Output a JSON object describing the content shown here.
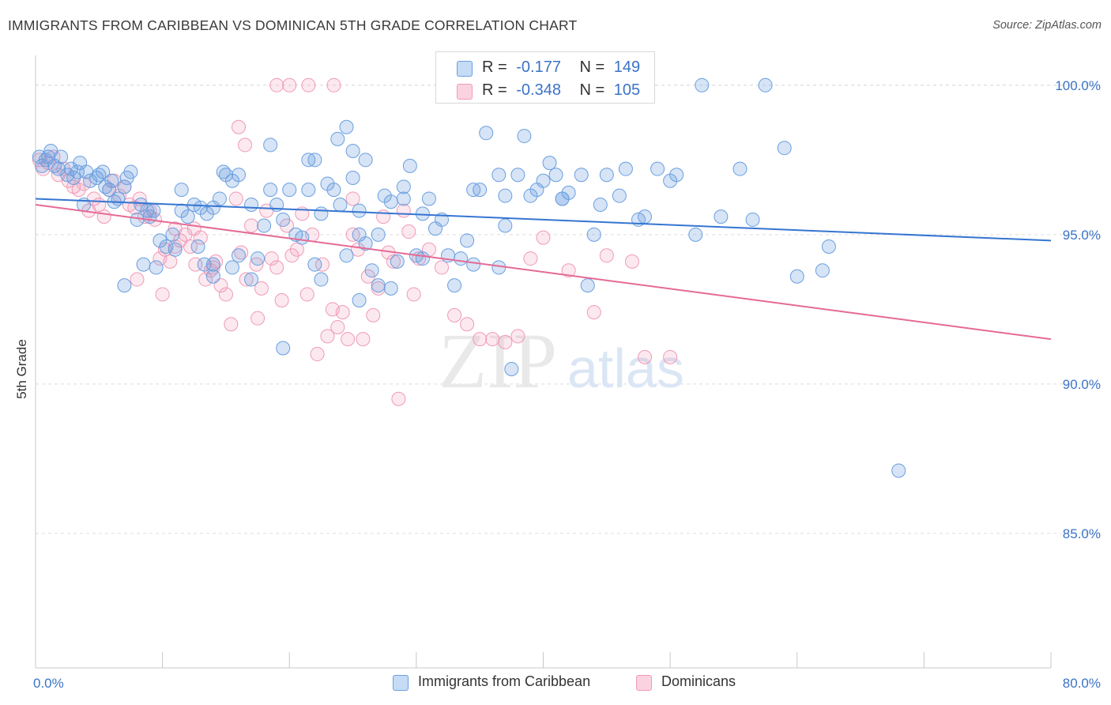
{
  "header": {
    "title": "IMMIGRANTS FROM CARIBBEAN VS DOMINICAN 5TH GRADE CORRELATION CHART",
    "source": "Source: ZipAtlas.com"
  },
  "watermark": {
    "zip": "ZIP",
    "atlas": "atlas"
  },
  "legend_top": {
    "rows": [
      {
        "r_label": "R =",
        "r_value": "-0.177",
        "n_label": "N =",
        "n_value": "149",
        "color": "#a9c8f0"
      },
      {
        "r_label": "R =",
        "r_value": "-0.348",
        "n_label": "N =",
        "n_value": "105",
        "color": "#f7b6ca"
      }
    ]
  },
  "legend_bottom": {
    "items": [
      {
        "label": "Immigrants from Caribbean",
        "color": "#a9c8f0"
      },
      {
        "label": "Dominicans",
        "color": "#f7b6ca"
      }
    ]
  },
  "chart_data": {
    "type": "scatter",
    "title": "IMMIGRANTS FROM CARIBBEAN VS DOMINICAN 5TH GRADE CORRELATION CHART",
    "xlabel": "",
    "ylabel": "5th Grade",
    "xlim": [
      0,
      80
    ],
    "ylim": [
      80.5,
      101
    ],
    "x_tick_labels": [
      "0.0%",
      "80.0%"
    ],
    "y_ticks": [
      85,
      90,
      95,
      100
    ],
    "y_tick_labels": [
      "85.0%",
      "90.0%",
      "95.0%",
      "100.0%"
    ],
    "grid": "horizontal dashed",
    "legend_placement": "top-center and bottom",
    "colors": {
      "blue": "#6a9fe0",
      "blue_line": "#3575d1",
      "pink": "#f09ab6",
      "pink_line": "#e56a95",
      "tick_text": "#3b73c6"
    },
    "series": [
      {
        "name": "Immigrants from Caribbean",
        "color": "#6a9fe0",
        "trend": {
          "x": [
            0,
            80
          ],
          "y": [
            96.2,
            94.8
          ]
        },
        "points": [
          [
            0.3,
            97.6
          ],
          [
            0.5,
            97.3
          ],
          [
            0.8,
            97.5
          ],
          [
            1.0,
            97.6
          ],
          [
            1.2,
            97.8
          ],
          [
            1.5,
            97.3
          ],
          [
            1.8,
            97.2
          ],
          [
            2.0,
            97.6
          ],
          [
            2.5,
            97.0
          ],
          [
            2.8,
            97.2
          ],
          [
            3.0,
            96.9
          ],
          [
            3.3,
            97.1
          ],
          [
            3.5,
            97.4
          ],
          [
            4.0,
            97.1
          ],
          [
            4.3,
            96.8
          ],
          [
            4.8,
            96.9
          ],
          [
            5.0,
            97.0
          ],
          [
            5.3,
            97.1
          ],
          [
            5.5,
            96.6
          ],
          [
            6.0,
            96.8
          ],
          [
            6.2,
            96.1
          ],
          [
            6.5,
            96.2
          ],
          [
            7.0,
            96.6
          ],
          [
            7.2,
            96.9
          ],
          [
            7.5,
            97.1
          ],
          [
            3.8,
            96.0
          ],
          [
            5.8,
            96.5
          ],
          [
            8.0,
            95.5
          ],
          [
            8.3,
            96.0
          ],
          [
            8.8,
            95.8
          ],
          [
            9.0,
            95.6
          ],
          [
            9.3,
            95.8
          ],
          [
            9.8,
            94.8
          ],
          [
            10.3,
            94.6
          ],
          [
            10.8,
            95.0
          ],
          [
            11.0,
            94.5
          ],
          [
            11.5,
            95.8
          ],
          [
            12.0,
            95.6
          ],
          [
            12.5,
            96.0
          ],
          [
            13.0,
            95.9
          ],
          [
            13.5,
            95.7
          ],
          [
            14.0,
            95.9
          ],
          [
            14.5,
            96.2
          ],
          [
            7.0,
            93.3
          ],
          [
            8.5,
            94.0
          ],
          [
            9.5,
            93.9
          ],
          [
            11.5,
            96.5
          ],
          [
            12.8,
            94.6
          ],
          [
            13.3,
            94.0
          ],
          [
            14.0,
            94.0
          ],
          [
            15.0,
            97.0
          ],
          [
            15.5,
            96.8
          ],
          [
            16.0,
            97.0
          ],
          [
            17.0,
            96.0
          ],
          [
            17.5,
            94.2
          ],
          [
            18.0,
            95.3
          ],
          [
            18.5,
            96.5
          ],
          [
            19.0,
            96.0
          ],
          [
            19.5,
            95.5
          ],
          [
            20.0,
            96.5
          ],
          [
            20.5,
            95.0
          ],
          [
            21.0,
            94.9
          ],
          [
            21.5,
            96.5
          ],
          [
            22.0,
            94.0
          ],
          [
            22.5,
            95.7
          ],
          [
            23.0,
            96.7
          ],
          [
            23.5,
            96.5
          ],
          [
            24.0,
            96.0
          ],
          [
            24.5,
            94.3
          ],
          [
            25.0,
            96.9
          ],
          [
            25.5,
            95.0
          ],
          [
            26.0,
            94.7
          ],
          [
            26.5,
            93.8
          ],
          [
            27.0,
            95.0
          ],
          [
            27.5,
            96.3
          ],
          [
            28.0,
            96.1
          ],
          [
            28.5,
            94.1
          ],
          [
            29.0,
            96.2
          ],
          [
            29.5,
            97.3
          ],
          [
            30.0,
            94.3
          ],
          [
            14.8,
            97.1
          ],
          [
            18.5,
            98.0
          ],
          [
            23.8,
            98.2
          ],
          [
            24.5,
            98.6
          ],
          [
            21.5,
            97.5
          ],
          [
            25.0,
            97.8
          ],
          [
            26.0,
            97.5
          ],
          [
            15.5,
            93.9
          ],
          [
            16.0,
            94.3
          ],
          [
            17.0,
            93.5
          ],
          [
            14.0,
            93.6
          ],
          [
            19.5,
            91.2
          ],
          [
            22.5,
            93.5
          ],
          [
            25.5,
            92.8
          ],
          [
            28.0,
            93.2
          ],
          [
            29.0,
            96.6
          ],
          [
            30.5,
            94.2
          ],
          [
            31.0,
            96.2
          ],
          [
            31.5,
            95.2
          ],
          [
            32.0,
            95.5
          ],
          [
            33.0,
            93.3
          ],
          [
            33.5,
            94.2
          ],
          [
            34.0,
            94.8
          ],
          [
            34.5,
            94.0
          ],
          [
            35.0,
            96.5
          ],
          [
            35.5,
            98.4
          ],
          [
            36.5,
            97.0
          ],
          [
            37.0,
            96.3
          ],
          [
            38.0,
            97.0
          ],
          [
            38.5,
            98.3
          ],
          [
            39.0,
            96.3
          ],
          [
            39.5,
            96.5
          ],
          [
            40.0,
            96.8
          ],
          [
            40.5,
            97.4
          ],
          [
            41.0,
            97.0
          ],
          [
            41.5,
            96.2
          ],
          [
            42.0,
            96.4
          ],
          [
            43.0,
            97.0
          ],
          [
            43.5,
            93.3
          ],
          [
            44.0,
            95.0
          ],
          [
            45.0,
            97.0
          ],
          [
            46.5,
            97.2
          ],
          [
            47.5,
            95.5
          ],
          [
            48.0,
            95.6
          ],
          [
            49.0,
            97.2
          ],
          [
            50.5,
            97.0
          ],
          [
            52.5,
            100.0
          ],
          [
            57.5,
            100.0
          ],
          [
            59.0,
            97.9
          ],
          [
            60.0,
            93.6
          ],
          [
            62.0,
            93.8
          ],
          [
            68.0,
            87.1
          ],
          [
            36.5,
            93.9
          ],
          [
            37.5,
            90.5
          ],
          [
            41.5,
            96.2
          ],
          [
            37.0,
            95.3
          ],
          [
            52.0,
            95.0
          ],
          [
            55.5,
            97.2
          ],
          [
            56.5,
            95.5
          ],
          [
            62.5,
            94.6
          ],
          [
            44.5,
            96.0
          ],
          [
            46.0,
            96.3
          ],
          [
            54.0,
            95.6
          ],
          [
            50.0,
            96.8
          ],
          [
            34.5,
            96.5
          ],
          [
            32.5,
            94.3
          ],
          [
            30.5,
            95.7
          ],
          [
            27.0,
            93.3
          ],
          [
            25.5,
            95.8
          ],
          [
            22.0,
            97.5
          ]
        ]
      },
      {
        "name": "Dominicans",
        "color": "#f09ab6",
        "trend": {
          "x": [
            0,
            80
          ],
          "y": [
            96.0,
            91.5
          ]
        },
        "points": [
          [
            0.3,
            97.5
          ],
          [
            0.6,
            97.2
          ],
          [
            1.0,
            97.4
          ],
          [
            1.4,
            97.6
          ],
          [
            1.8,
            97.0
          ],
          [
            2.2,
            97.2
          ],
          [
            2.6,
            96.8
          ],
          [
            3.0,
            96.6
          ],
          [
            3.4,
            96.5
          ],
          [
            3.8,
            96.7
          ],
          [
            4.2,
            95.8
          ],
          [
            4.6,
            96.2
          ],
          [
            5.0,
            96.0
          ],
          [
            5.4,
            95.6
          ],
          [
            5.8,
            96.5
          ],
          [
            6.2,
            96.8
          ],
          [
            6.6,
            96.3
          ],
          [
            7.0,
            96.6
          ],
          [
            7.4,
            96.0
          ],
          [
            7.8,
            95.9
          ],
          [
            8.2,
            96.2
          ],
          [
            8.6,
            95.6
          ],
          [
            9.0,
            95.8
          ],
          [
            9.4,
            95.5
          ],
          [
            9.8,
            94.2
          ],
          [
            10.2,
            94.5
          ],
          [
            10.6,
            94.1
          ],
          [
            11.0,
            95.2
          ],
          [
            11.4,
            94.8
          ],
          [
            11.8,
            95.0
          ],
          [
            12.2,
            94.6
          ],
          [
            12.6,
            94.0
          ],
          [
            13.0,
            94.9
          ],
          [
            13.4,
            93.5
          ],
          [
            13.8,
            93.8
          ],
          [
            14.2,
            94.1
          ],
          [
            14.6,
            93.3
          ],
          [
            15.0,
            93.0
          ],
          [
            15.4,
            92.0
          ],
          [
            15.8,
            96.2
          ],
          [
            16.2,
            94.4
          ],
          [
            16.6,
            93.5
          ],
          [
            17.0,
            95.3
          ],
          [
            17.4,
            94.0
          ],
          [
            17.8,
            93.2
          ],
          [
            18.2,
            95.8
          ],
          [
            18.6,
            94.2
          ],
          [
            19.0,
            93.9
          ],
          [
            19.4,
            92.8
          ],
          [
            19.8,
            95.3
          ],
          [
            20.2,
            94.3
          ],
          [
            20.6,
            94.5
          ],
          [
            21.0,
            95.7
          ],
          [
            21.4,
            93.0
          ],
          [
            21.8,
            95.0
          ],
          [
            22.2,
            91.0
          ],
          [
            22.6,
            94.0
          ],
          [
            23.0,
            91.6
          ],
          [
            23.4,
            92.5
          ],
          [
            23.8,
            91.9
          ],
          [
            24.2,
            92.4
          ],
          [
            24.6,
            91.5
          ],
          [
            25.0,
            95.0
          ],
          [
            25.4,
            94.5
          ],
          [
            25.8,
            91.5
          ],
          [
            26.2,
            93.6
          ],
          [
            26.6,
            92.3
          ],
          [
            27.0,
            93.2
          ],
          [
            27.4,
            95.6
          ],
          [
            27.8,
            94.4
          ],
          [
            28.2,
            94.1
          ],
          [
            28.6,
            89.5
          ],
          [
            29.0,
            95.8
          ],
          [
            29.4,
            95.1
          ],
          [
            29.8,
            93.0
          ],
          [
            30.2,
            94.2
          ],
          [
            31.0,
            94.5
          ],
          [
            32.0,
            93.9
          ],
          [
            33.0,
            92.3
          ],
          [
            34.0,
            92.0
          ],
          [
            35.0,
            91.5
          ],
          [
            36.0,
            91.5
          ],
          [
            37.0,
            91.4
          ],
          [
            38.0,
            91.6
          ],
          [
            39.0,
            94.2
          ],
          [
            40.0,
            94.9
          ],
          [
            42.0,
            93.8
          ],
          [
            44.0,
            92.4
          ],
          [
            45.0,
            94.3
          ],
          [
            47.0,
            94.1
          ],
          [
            48.0,
            90.9
          ],
          [
            50.0,
            90.9
          ],
          [
            16.0,
            98.6
          ],
          [
            16.5,
            98.0
          ],
          [
            19.0,
            100.0
          ],
          [
            20.0,
            100.0
          ],
          [
            21.5,
            100.0
          ],
          [
            23.5,
            100.0
          ],
          [
            25.0,
            96.2
          ],
          [
            17.5,
            92.2
          ],
          [
            12.5,
            95.2
          ],
          [
            10.0,
            93.0
          ],
          [
            8.0,
            93.5
          ],
          [
            14.0,
            93.9
          ],
          [
            11.0,
            94.6
          ]
        ]
      }
    ]
  }
}
